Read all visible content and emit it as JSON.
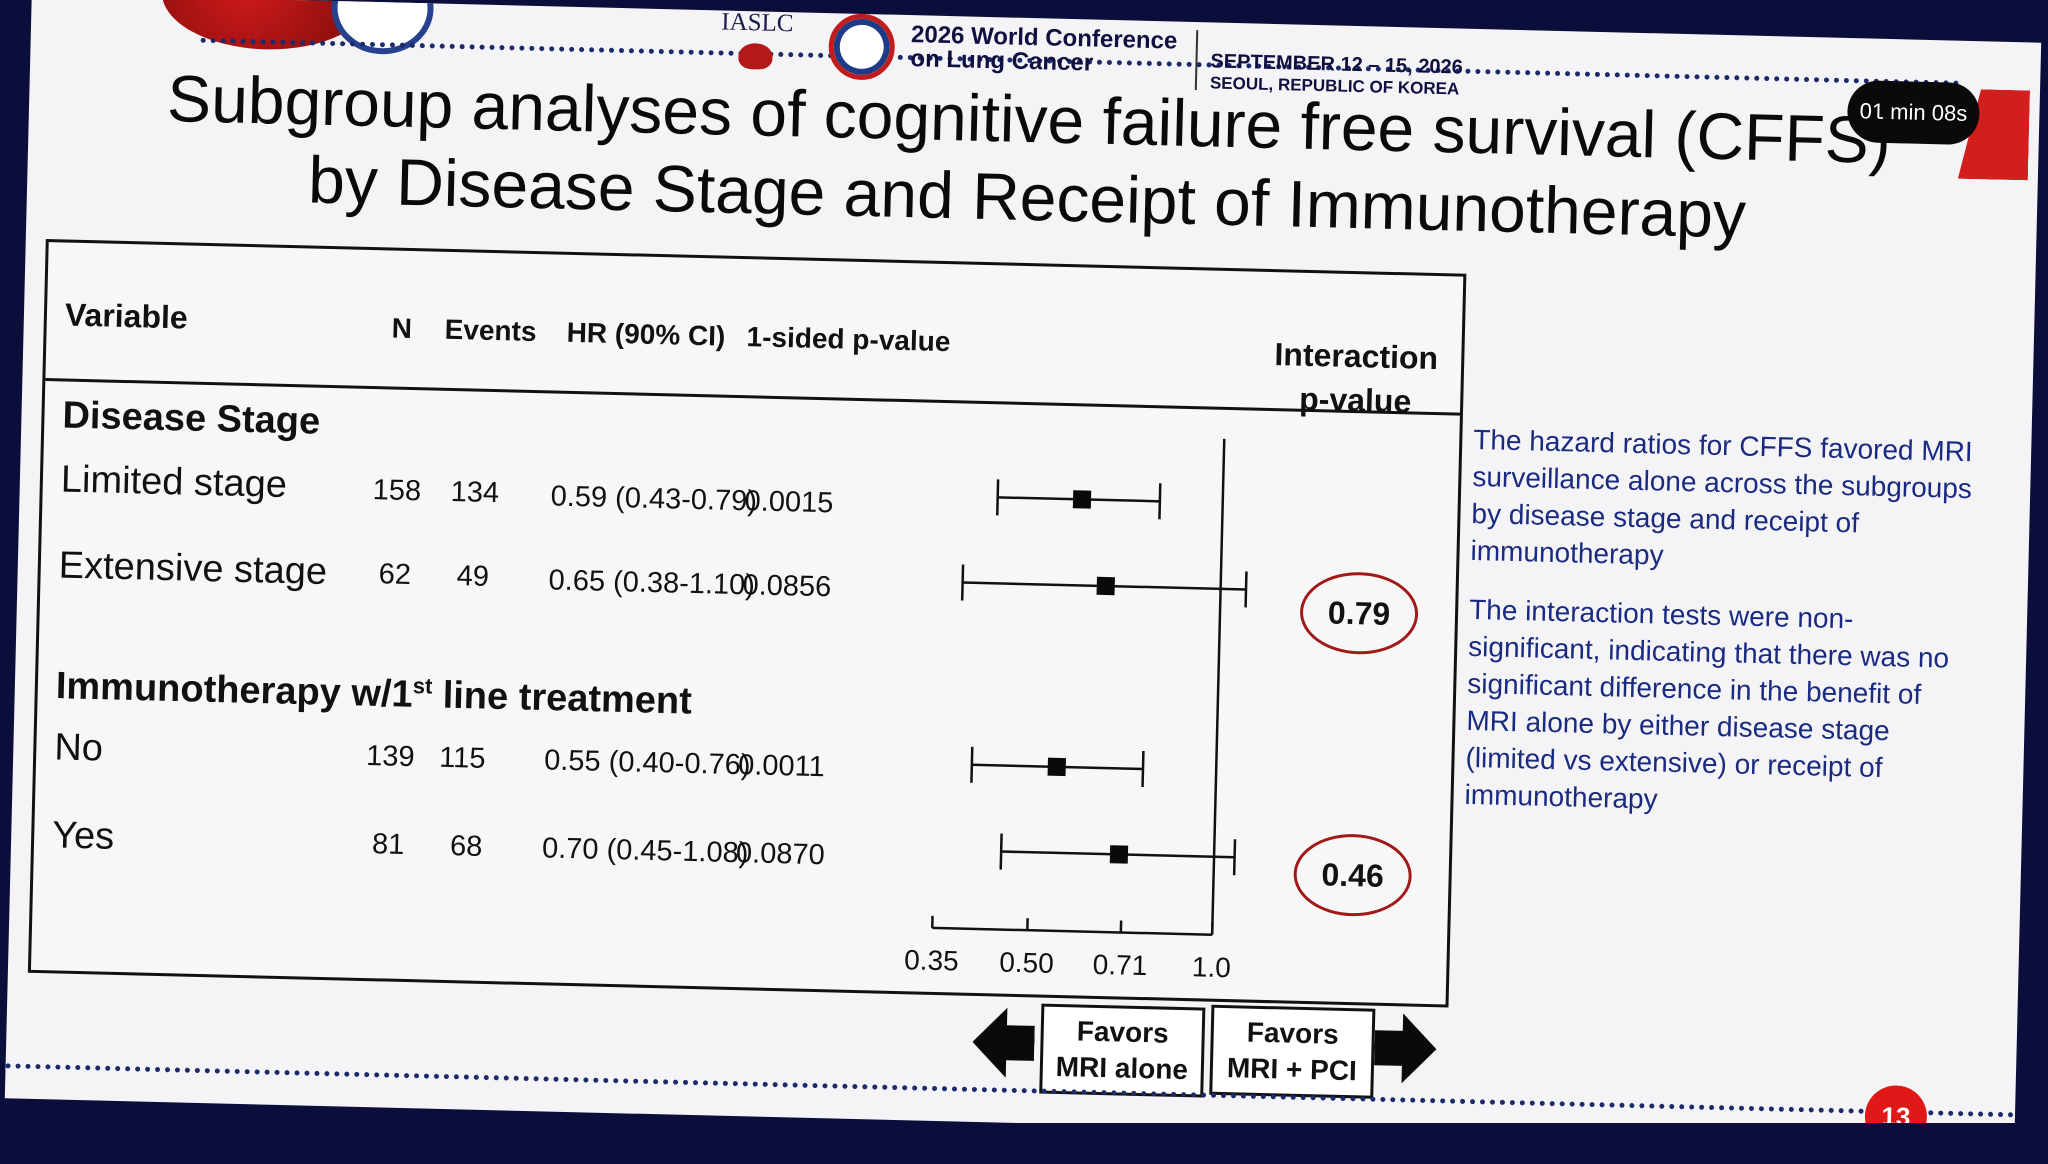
{
  "header": {
    "org": "IASLC",
    "conference_line1": "2026 World Conference",
    "conference_line2": "on Lung Cancer",
    "dates": "SEPTEMBER 12 – 15, 2026",
    "location": "SEOUL, REPUBLIC OF KOREA"
  },
  "timer": "01 min 08s",
  "title_line1": "Subgroup analyses of cognitive failure free survival (CFFS)",
  "title_line2": "by Disease Stage and Receipt of Immunotherapy",
  "columns": {
    "variable": "Variable",
    "n": "N",
    "events": "Events",
    "hr": "HR (90% CI)",
    "p": "1-sided p-value",
    "interaction_line1": "Interaction",
    "interaction_line2": "p-value"
  },
  "sections": {
    "disease_stage": "Disease Stage",
    "immuno_pre": "Immunotherapy w/1",
    "immuno_sup": "st",
    "immuno_post": " line treatment"
  },
  "rows": [
    {
      "label": "Limited stage",
      "n": "158",
      "events": "134",
      "hr": "0.59 (0.43-0.79)",
      "p": "0.0015"
    },
    {
      "label": "Extensive stage",
      "n": "62",
      "events": "49",
      "hr": "0.65 (0.38-1.10)",
      "p": "0.0856"
    },
    {
      "label": "No",
      "n": "139",
      "events": "115",
      "hr": "0.55 (0.40-0.76)",
      "p": "0.0011"
    },
    {
      "label": "Yes",
      "n": "81",
      "events": "68",
      "hr": "0.70 (0.45-1.08)",
      "p": "0.0870"
    }
  ],
  "interaction_p": [
    "0.79",
    "0.46"
  ],
  "chart_data": {
    "type": "forest",
    "log_scale": true,
    "xlim": [
      0.35,
      1.0
    ],
    "reference_line": 1.0,
    "ticks": [
      0.35,
      0.5,
      0.71,
      1.0
    ],
    "tick_labels": [
      "0.35",
      "0.50",
      "0.71",
      "1.0"
    ],
    "points": [
      {
        "label": "Limited stage",
        "hr": 0.59,
        "lo": 0.43,
        "hi": 0.79
      },
      {
        "label": "Extensive stage",
        "hr": 0.65,
        "lo": 0.38,
        "hi": 1.1
      },
      {
        "label": "No",
        "hr": 0.55,
        "lo": 0.4,
        "hi": 0.76
      },
      {
        "label": "Yes",
        "hr": 0.7,
        "lo": 0.45,
        "hi": 1.08
      }
    ]
  },
  "favors_left_line1": "Favors",
  "favors_left_line2": "MRI alone",
  "favors_right_line1": "Favors",
  "favors_right_line2": "MRI + PCI",
  "note_p1": "The hazard ratios for CFFS favored MRI surveillance alone across the subgroups by disease stage and receipt of immunotherapy",
  "note_p2": "The interaction tests were non-significant, indicating that there was no significant difference in the benefit of MRI alone by either disease stage (limited vs extensive) or receipt of immunotherapy",
  "page_number": "13"
}
